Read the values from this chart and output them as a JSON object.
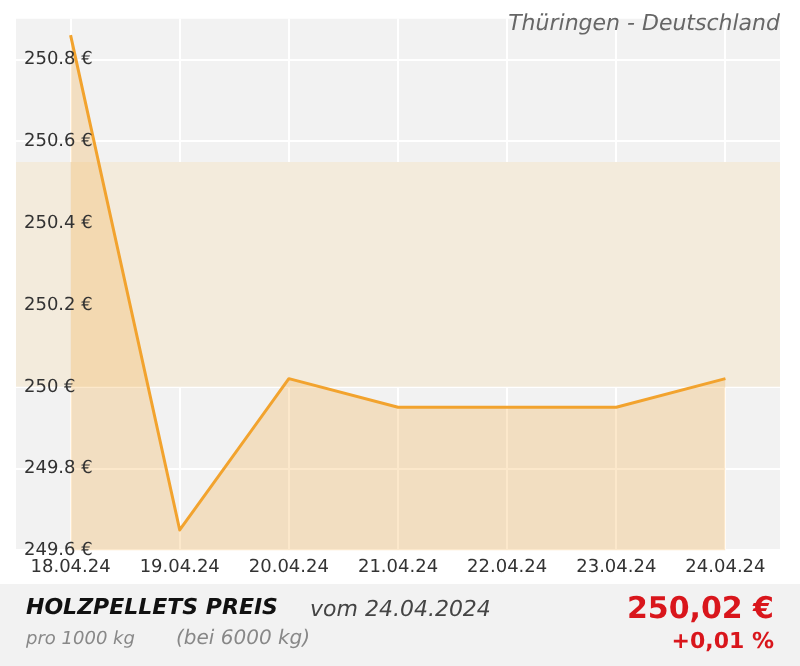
{
  "chart_data": {
    "type": "area",
    "title": "HOLZPELLETS PREIS",
    "subtitle": "Thüringen - Deutschland",
    "annotations": [
      "vom 24.04.2024",
      "pro 1000 kg",
      "(bei 6000 kg)",
      "250,02 €",
      "+0,01 %"
    ],
    "categories": [
      "18.04.24",
      "19.04.24",
      "20.04.24",
      "21.04.24",
      "22.04.24",
      "23.04.24",
      "24.04.24"
    ],
    "series": [
      {
        "color": "#f2a32e",
        "values": [
          250.86,
          249.65,
          250.02,
          249.95,
          249.95,
          249.95,
          250.02
        ]
      }
    ],
    "ylim": [
      249.6,
      250.9
    ],
    "yticks": [
      {
        "value": 249.6,
        "label": "249.6 €"
      },
      {
        "value": 249.8,
        "label": "249.8 €"
      },
      {
        "value": 250,
        "label": "250 €"
      },
      {
        "value": 250.2,
        "label": "250.2 €"
      },
      {
        "value": 250.4,
        "label": "250.4 €"
      },
      {
        "value": 250.6,
        "label": "250.6 €"
      },
      {
        "value": 250.8,
        "label": "250.8 €"
      }
    ],
    "bands": [
      {
        "axis": "y",
        "from": 250,
        "to": 250.55,
        "color": "#f3ebdc"
      }
    ],
    "grid": true,
    "legend": false,
    "marker": "none",
    "line_style": "solid"
  }
}
